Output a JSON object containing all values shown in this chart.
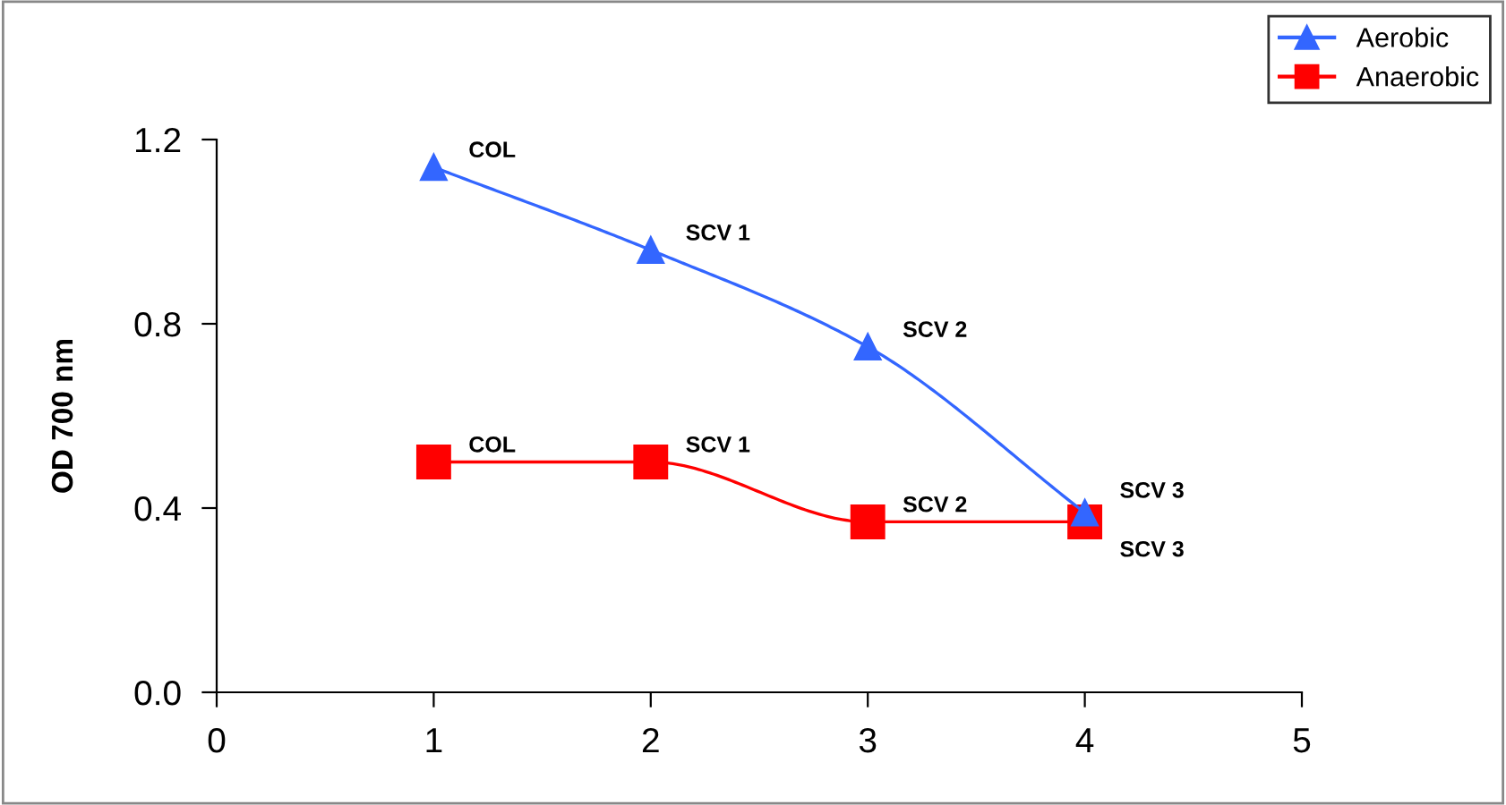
{
  "chart_data": {
    "type": "line",
    "ylabel": "OD 700 nm",
    "xlim": [
      0,
      5
    ],
    "xticks": [
      0,
      1,
      2,
      3,
      4,
      5
    ],
    "ylim": [
      0,
      1.2
    ],
    "yticks": [
      {
        "value": 0,
        "label": "0.0"
      },
      0.4,
      0.8,
      1.2
    ],
    "grid": false,
    "legend": "top right",
    "line_style": "solid",
    "series": [
      {
        "name": "Aerobic",
        "color": "#3366ff",
        "marker": "triangle",
        "x": [
          1,
          2,
          3,
          4
        ],
        "values": [
          1.14,
          0.96,
          0.75,
          0.39
        ]
      },
      {
        "name": "Anaerobic",
        "color": "#ff0000",
        "marker": "square",
        "x": [
          1,
          2,
          3,
          4
        ],
        "values": [
          0.5,
          0.5,
          0.37,
          0.37
        ]
      }
    ],
    "annotations": [
      {
        "text": "COL",
        "x": 1,
        "y": 1.14
      },
      {
        "text": "SCV 1",
        "x": 2,
        "y": 0.96
      },
      {
        "text": "SCV 2",
        "x": 3,
        "y": 0.75
      },
      {
        "text": "SCV 3",
        "x": 4,
        "y": 0.39
      },
      {
        "text": "COL",
        "x": 1,
        "y": 0.5
      },
      {
        "text": "SCV 1",
        "x": 2,
        "y": 0.5
      },
      {
        "text": "SCV 2",
        "x": 3,
        "y": 0.37
      },
      {
        "text": "SCV 3",
        "x": 4,
        "y": 0.37
      }
    ]
  }
}
